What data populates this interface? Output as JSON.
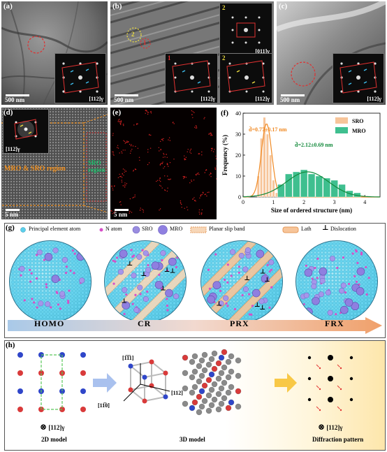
{
  "panel_a": {
    "label": "(a)",
    "scale": "500 nm",
    "zone_axis": "[112]γ"
  },
  "panel_b": {
    "label": "(b)",
    "scale": "500 nm",
    "region_1": "1",
    "region_2": "2",
    "inset_top_label": "2",
    "inset_top_axis": "[011]γ",
    "inset_left_label": "1",
    "inset_left_axis": "[112]γ",
    "inset_right_label": "2",
    "inset_right_axis": "[112]γ"
  },
  "panel_c": {
    "label": "(c)",
    "scale": "500 nm",
    "zone_axis": "[112]γ"
  },
  "panel_d": {
    "label": "(d)",
    "scale": "5 nm",
    "zone_axis": "[112]γ",
    "region_mro": "MRO & SRO region",
    "region_sro": "SRO region"
  },
  "panel_e": {
    "label": "(e)",
    "scale": "5 nm"
  },
  "panel_f": {
    "label": "(f)",
    "chart_data": {
      "type": "bar",
      "title": "",
      "xlabel": "Size of ordered structure (nm)",
      "ylabel": "Frequency (%)",
      "xlim": [
        0,
        4.5
      ],
      "ylim": [
        0,
        40
      ],
      "xticks": [
        0,
        1,
        2,
        3,
        4
      ],
      "yticks": [
        0,
        10,
        20,
        30,
        40
      ],
      "legend_position": "top-right",
      "series": [
        {
          "name": "SRO",
          "color": "#f7c59a",
          "bin_width": 0.1,
          "x": [
            0.5,
            0.6,
            0.7,
            0.8,
            0.9,
            1.0,
            1.1
          ],
          "values": [
            10,
            28,
            38,
            30,
            20,
            8,
            2
          ],
          "fit_mean": 0.77,
          "fit_sd": 0.17,
          "fit_peak": 35,
          "fit_color": "#f08a24",
          "annotation": "d̄=0.77±0.17 nm"
        },
        {
          "name": "MRO",
          "color": "#3fbf8f",
          "bin_width": 0.25,
          "x": [
            1.25,
            1.5,
            1.75,
            2.0,
            2.25,
            2.5,
            2.75,
            3.0,
            3.25,
            3.5,
            3.75
          ],
          "values": [
            6,
            11,
            12,
            13,
            11,
            10,
            9,
            8,
            6,
            3,
            2
          ],
          "fit_mean": 2.12,
          "fit_sd": 0.69,
          "fit_peak": 12,
          "fit_color": "#138a3c",
          "annotation": "d̄=2.12±0.69 nm"
        }
      ]
    }
  },
  "panel_g": {
    "label": "(g)",
    "legend": {
      "principal": "Principal element atom",
      "n_atom": "N atom",
      "sro": "SRO",
      "mro": "MRO",
      "slip": "Planar slip band",
      "lath": "Lath",
      "dislocation": "Dislocation",
      "dislocation_symbol": "⊥"
    },
    "stages": [
      "HOMO",
      "CR",
      "PRX",
      "FRX"
    ]
  },
  "panel_h": {
    "label": "(h)",
    "model_2d": "2D model",
    "model_3d": "3D model",
    "diffraction": "Diffraction pattern",
    "axis_2d": "[112]γ",
    "axis_diff": "[112]γ",
    "dir_up": "[1̅1̅1]",
    "dir_right": "[112]",
    "dir_down": "[11̅0]"
  },
  "colors": {
    "red_atom": "#d93a3a",
    "blue_atom": "#2f46c9",
    "gray_atom": "#8a8a8a",
    "sro_fill": "#f7c59a",
    "mro_fill": "#3fbf8f",
    "annotation_orange": "#f08a24",
    "annotation_green": "#138a3c"
  }
}
